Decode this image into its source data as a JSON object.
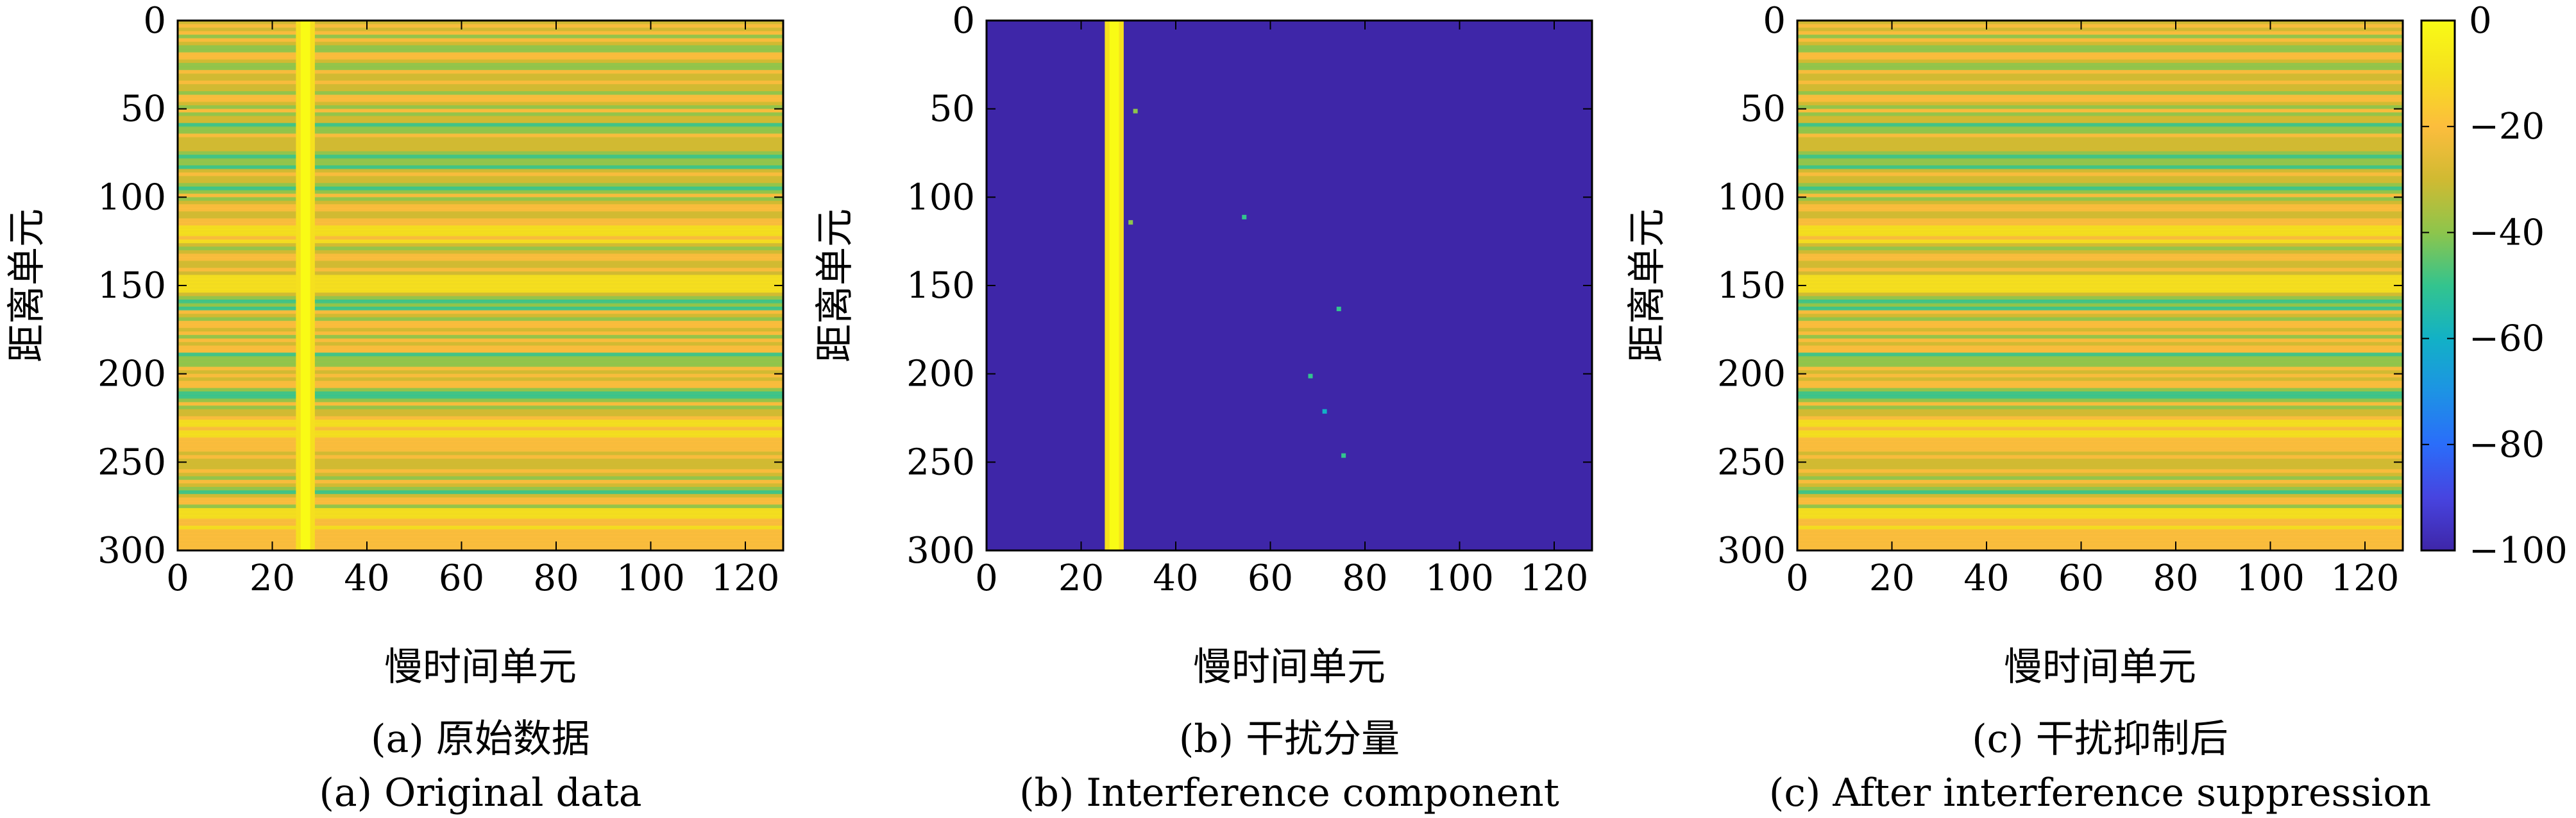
{
  "colormap": [
    "#3e26a8",
    "#4744e0",
    "#2a6dfa",
    "#1d93e4",
    "#12b1c6",
    "#33c48e",
    "#8dc54c",
    "#d0ba32",
    "#fcbd3d",
    "#f5e01e",
    "#f9fb15"
  ],
  "chart_data": [
    {
      "type": "heatmap",
      "id": "a",
      "caption_cn": "(a) 原始数据",
      "caption_en": "(a) Original data",
      "xlabel": "慢时间单元",
      "ylabel": "距离单元",
      "xlim": [
        0,
        128
      ],
      "ylim": [
        300,
        0
      ],
      "xticks": [
        0,
        20,
        40,
        60,
        80,
        100,
        120
      ],
      "yticks": [
        0,
        50,
        100,
        150,
        200,
        250,
        300
      ],
      "xtick_labels": [
        "0",
        "20",
        "40",
        "60",
        "80",
        "100",
        "120"
      ],
      "ytick_labels": [
        "0",
        "50",
        "100",
        "150",
        "200",
        "250",
        "300"
      ],
      "interference_columns": [
        25,
        29
      ],
      "interference_level": 0,
      "background_level": -28,
      "strong_rows": [
        120,
        148,
        230,
        236,
        280,
        290
      ],
      "weak_rows": [
        25,
        60,
        75,
        80,
        95,
        160,
        190,
        210,
        265
      ]
    },
    {
      "type": "heatmap",
      "id": "b",
      "caption_cn": "(b) 干扰分量",
      "caption_en": "(b) Interference component",
      "xlabel": "慢时间单元",
      "ylabel": "距离单元",
      "xlim": [
        0,
        128
      ],
      "ylim": [
        300,
        0
      ],
      "xticks": [
        0,
        20,
        40,
        60,
        80,
        100,
        120
      ],
      "yticks": [
        0,
        50,
        100,
        150,
        200,
        250,
        300
      ],
      "xtick_labels": [
        "0",
        "20",
        "40",
        "60",
        "80",
        "100",
        "120"
      ],
      "ytick_labels": [
        "0",
        "50",
        "100",
        "150",
        "200",
        "250",
        "300"
      ],
      "interference_columns": [
        25,
        29
      ],
      "interference_level": 0,
      "background_level": -100,
      "sparse_points": [
        {
          "x": 54,
          "y": 110,
          "value": -50
        },
        {
          "x": 74,
          "y": 162,
          "value": -50
        },
        {
          "x": 68,
          "y": 200,
          "value": -50
        },
        {
          "x": 71,
          "y": 220,
          "value": -60
        },
        {
          "x": 75,
          "y": 245,
          "value": -50
        },
        {
          "x": 31,
          "y": 50,
          "value": -45
        },
        {
          "x": 30,
          "y": 113,
          "value": -45
        }
      ]
    },
    {
      "type": "heatmap",
      "id": "c",
      "caption_cn": "(c) 干扰抑制后",
      "caption_en": "(c) After interference suppression",
      "xlabel": "慢时间单元",
      "ylabel": "距离单元",
      "xlim": [
        0,
        128
      ],
      "ylim": [
        300,
        0
      ],
      "xticks": [
        0,
        20,
        40,
        60,
        80,
        100,
        120
      ],
      "yticks": [
        0,
        50,
        100,
        150,
        200,
        250,
        300
      ],
      "xtick_labels": [
        "0",
        "20",
        "40",
        "60",
        "80",
        "100",
        "120"
      ],
      "ytick_labels": [
        "0",
        "50",
        "100",
        "150",
        "200",
        "250",
        "300"
      ],
      "background_level": -28,
      "strong_rows": [
        120,
        148,
        230,
        236,
        280,
        290
      ],
      "weak_rows": [
        25,
        60,
        75,
        80,
        95,
        160,
        190,
        210,
        265
      ]
    }
  ],
  "colorbar": {
    "range": [
      -100,
      0
    ],
    "ticks": [
      0,
      -20,
      -40,
      -60,
      -80,
      -100
    ],
    "tick_labels": [
      "0",
      "−20",
      "−40",
      "−60",
      "−80",
      "−100"
    ]
  }
}
